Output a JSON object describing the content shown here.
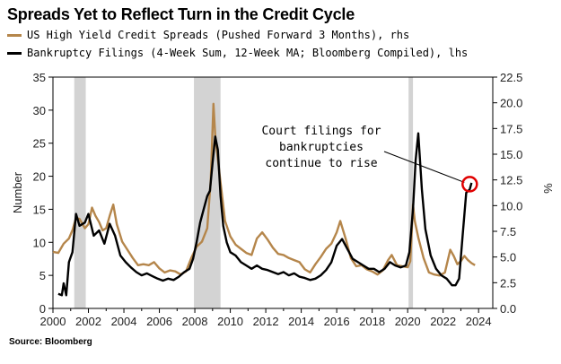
{
  "title": "Spreads Yet to Reflect Turn in the Credit Cycle",
  "source": "Source: Bloomberg",
  "colors": {
    "spreads": "#b5864b",
    "filings": "#000000",
    "recession": "#d3d3d3",
    "marker": "#e00000"
  },
  "chart_data": {
    "type": "line",
    "title": "Spreads Yet to Reflect Turn in the Credit Cycle",
    "xlabel": "",
    "ylabel_left": "Number",
    "ylabel_right": "%",
    "xlim": [
      2000,
      2024.8
    ],
    "ylim_left": [
      0,
      35
    ],
    "ylim_right": [
      0,
      22.5
    ],
    "x_ticks": [
      "2000",
      "2002",
      "2004",
      "2006",
      "2008",
      "2010",
      "2012",
      "2014",
      "2016",
      "2018",
      "2020",
      "2022",
      "2024"
    ],
    "y_ticks_left": [
      "0",
      "5",
      "10",
      "15",
      "20",
      "25",
      "30",
      "35"
    ],
    "y_ticks_right": [
      "0.0",
      "2.5",
      "5.0",
      "7.5",
      "10.0",
      "12.5",
      "15.0",
      "17.5",
      "20.0",
      "22.5"
    ],
    "grid": false,
    "legend_position": "top-left",
    "recession_shading": [
      [
        2001.2,
        2001.85
      ],
      [
        2007.95,
        2009.45
      ],
      [
        2020.05,
        2020.3
      ]
    ],
    "series": [
      {
        "name": "US High Yield Credit Spreads (Pushed Forward 3 Months), rhs",
        "axis": "right",
        "x": [
          2000.0,
          2000.3,
          2000.6,
          2000.9,
          2001.1,
          2001.3,
          2001.5,
          2001.8,
          2002.0,
          2002.2,
          2002.4,
          2002.6,
          2002.8,
          2003.0,
          2003.2,
          2003.4,
          2003.6,
          2003.9,
          2004.2,
          2004.5,
          2004.8,
          2005.1,
          2005.4,
          2005.7,
          2006.0,
          2006.3,
          2006.6,
          2006.9,
          2007.2,
          2007.5,
          2007.8,
          2008.1,
          2008.4,
          2008.7,
          2008.9,
          2009.05,
          2009.15,
          2009.3,
          2009.5,
          2009.7,
          2010.0,
          2010.3,
          2010.6,
          2010.9,
          2011.2,
          2011.5,
          2011.8,
          2012.1,
          2012.4,
          2012.7,
          2013.0,
          2013.3,
          2013.6,
          2013.9,
          2014.2,
          2014.5,
          2014.8,
          2015.1,
          2015.4,
          2015.7,
          2016.0,
          2016.2,
          2016.5,
          2016.8,
          2017.1,
          2017.4,
          2017.7,
          2018.0,
          2018.3,
          2018.6,
          2018.9,
          2019.1,
          2019.4,
          2019.7,
          2020.0,
          2020.15,
          2020.3,
          2020.4,
          2020.6,
          2020.9,
          2021.2,
          2021.5,
          2021.8,
          2022.1,
          2022.4,
          2022.6,
          2022.8,
          2023.0,
          2023.2,
          2023.4,
          2023.6,
          2023.8
        ],
        "values": [
          5.5,
          5.4,
          6.3,
          6.8,
          7.6,
          8.8,
          8.7,
          7.8,
          8.2,
          9.8,
          9.0,
          8.4,
          7.6,
          7.8,
          9.0,
          10.1,
          8.2,
          6.5,
          5.7,
          4.9,
          4.2,
          4.3,
          4.2,
          4.5,
          3.9,
          3.5,
          3.7,
          3.6,
          3.3,
          3.6,
          4.9,
          6.0,
          6.5,
          7.8,
          12.5,
          19.9,
          16.8,
          14.5,
          11.5,
          8.5,
          7.0,
          6.2,
          5.8,
          5.4,
          5.2,
          6.8,
          7.4,
          6.7,
          5.9,
          5.3,
          5.2,
          4.9,
          4.7,
          4.5,
          3.8,
          3.5,
          4.3,
          5.0,
          5.8,
          6.3,
          7.4,
          8.5,
          6.8,
          4.9,
          4.1,
          4.2,
          3.8,
          3.6,
          3.3,
          3.7,
          4.7,
          5.2,
          4.2,
          4.1,
          4.0,
          4.6,
          10.1,
          8.5,
          6.9,
          4.9,
          3.5,
          3.3,
          3.2,
          3.5,
          5.7,
          5.1,
          4.3,
          4.6,
          5.1,
          4.7,
          4.4,
          4.2
        ]
      },
      {
        "name": "Bankruptcy Filings (4-Week Sum, 12-Week MA; Bloomberg Compiled), lhs",
        "axis": "left",
        "x": [
          2000.3,
          2000.5,
          2000.6,
          2000.75,
          2000.9,
          2001.1,
          2001.3,
          2001.5,
          2001.8,
          2002.0,
          2002.3,
          2002.6,
          2002.9,
          2003.2,
          2003.5,
          2003.8,
          2004.1,
          2004.4,
          2004.7,
          2005.0,
          2005.3,
          2005.6,
          2005.9,
          2006.2,
          2006.5,
          2006.8,
          2007.1,
          2007.4,
          2007.7,
          2007.9,
          2008.1,
          2008.3,
          2008.5,
          2008.7,
          2008.85,
          2009.0,
          2009.15,
          2009.3,
          2009.45,
          2009.6,
          2009.8,
          2010.0,
          2010.3,
          2010.6,
          2010.9,
          2011.2,
          2011.5,
          2011.8,
          2012.1,
          2012.4,
          2012.7,
          2013.0,
          2013.3,
          2013.6,
          2013.9,
          2014.2,
          2014.5,
          2014.8,
          2015.1,
          2015.4,
          2015.7,
          2016.0,
          2016.3,
          2016.6,
          2016.9,
          2017.2,
          2017.5,
          2017.8,
          2018.1,
          2018.4,
          2018.7,
          2019.0,
          2019.3,
          2019.6,
          2019.9,
          2020.1,
          2020.3,
          2020.45,
          2020.6,
          2020.8,
          2021.0,
          2021.3,
          2021.6,
          2021.9,
          2022.2,
          2022.5,
          2022.7,
          2022.9,
          2023.1,
          2023.3,
          2023.5,
          2023.6
        ],
        "values": [
          2.2,
          2.0,
          3.8,
          2.0,
          7.0,
          8.5,
          14.3,
          12.5,
          13.0,
          14.3,
          11.0,
          11.8,
          9.8,
          12.8,
          11.0,
          8.0,
          7.0,
          6.2,
          5.5,
          5.0,
          5.3,
          4.9,
          4.5,
          4.2,
          4.5,
          4.3,
          4.8,
          5.5,
          6.0,
          7.5,
          10.0,
          13.0,
          15.0,
          17.0,
          17.8,
          22.0,
          26.0,
          24.0,
          17.0,
          12.5,
          10.0,
          8.5,
          8.0,
          7.0,
          6.5,
          6.0,
          6.5,
          6.0,
          5.8,
          5.5,
          5.2,
          5.5,
          5.0,
          5.3,
          4.8,
          4.6,
          4.3,
          4.5,
          5.0,
          5.8,
          7.0,
          9.5,
          10.5,
          9.0,
          7.5,
          7.0,
          6.5,
          6.0,
          6.0,
          5.5,
          6.0,
          7.0,
          6.5,
          6.2,
          6.5,
          8.5,
          15.0,
          22.5,
          26.5,
          18.0,
          12.0,
          8.0,
          6.0,
          5.0,
          4.5,
          3.5,
          3.5,
          4.5,
          11.0,
          17.5,
          18.0,
          19.0
        ]
      }
    ],
    "annotations": [
      {
        "text_lines": [
          "Court filings for",
          "bankruptcies",
          "continue to rise"
        ],
        "x": 2023.5,
        "y": 18.8
      }
    ]
  }
}
